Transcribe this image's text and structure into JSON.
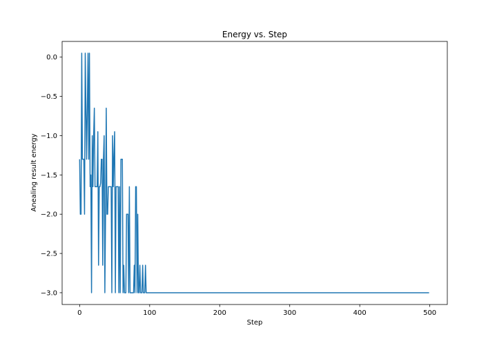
{
  "chart_data": {
    "type": "line",
    "title": "Energy vs. Step",
    "xlabel": "Step",
    "ylabel": "Anealing result energy",
    "xlim": [
      -25,
      525
    ],
    "ylim": [
      -3.15,
      0.2
    ],
    "xticks": [
      0,
      100,
      200,
      300,
      400,
      500
    ],
    "yticks": [
      0.0,
      -0.5,
      -1.0,
      -1.5,
      -2.0,
      -2.5,
      -3.0
    ],
    "xtick_labels": [
      "0",
      "100",
      "200",
      "300",
      "400",
      "500"
    ],
    "ytick_labels": [
      "0.0",
      "−0.5",
      "−1.0",
      "−1.5",
      "−2.0",
      "−2.5",
      "−3.0"
    ],
    "grid": false,
    "series": [
      {
        "color": "#1f77b4",
        "x": [
          0,
          1,
          2,
          3,
          4,
          5,
          6,
          7,
          8,
          9,
          10,
          11,
          12,
          13,
          14,
          15,
          16,
          17,
          18,
          19,
          20,
          21,
          22,
          23,
          24,
          25,
          26,
          27,
          28,
          29,
          30,
          31,
          32,
          33,
          34,
          35,
          36,
          37,
          38,
          39,
          40,
          41,
          42,
          43,
          44,
          45,
          46,
          47,
          48,
          49,
          50,
          51,
          52,
          53,
          54,
          55,
          56,
          57,
          58,
          59,
          60,
          61,
          62,
          63,
          64,
          65,
          66,
          67,
          68,
          69,
          70,
          71,
          72,
          73,
          74,
          75,
          76,
          77,
          78,
          79,
          80,
          81,
          82,
          83,
          84,
          85,
          86,
          87,
          88,
          89,
          90,
          91,
          92,
          93,
          94,
          95,
          96,
          97,
          98,
          99,
          100,
          499
        ],
        "y": [
          -1.3,
          -2.0,
          -2.0,
          0.05,
          -1.3,
          -1.3,
          -1.3,
          -2.0,
          0.05,
          -0.65,
          -1.3,
          -0.65,
          0.05,
          -1.3,
          0.05,
          -1.65,
          -1.5,
          -3.0,
          -1.0,
          -1.65,
          -1.0,
          -0.65,
          -1.65,
          -1.65,
          -1.65,
          -1.65,
          -0.95,
          -2.65,
          -1.65,
          -1.65,
          -1.6,
          -1.3,
          -1.3,
          -2.65,
          -1.3,
          -1.0,
          -3.0,
          -2.0,
          -0.65,
          -2.0,
          -2.0,
          -1.65,
          -1.65,
          -1.65,
          -1.65,
          -1.65,
          -3.0,
          -1.0,
          -1.65,
          -1.25,
          -0.95,
          -3.0,
          -1.65,
          -1.65,
          -1.65,
          -1.65,
          -3.0,
          -1.65,
          -3.0,
          -1.3,
          -1.3,
          -1.3,
          -3.0,
          -2.65,
          -3.0,
          -3.0,
          -3.0,
          -2.0,
          -2.0,
          -2.0,
          -3.0,
          -1.65,
          -3.0,
          -3.0,
          -3.0,
          -3.0,
          -3.0,
          -3.0,
          -2.65,
          -3.0,
          -1.65,
          -1.65,
          -3.0,
          -2.0,
          -3.0,
          -3.0,
          -2.65,
          -3.0,
          -3.0,
          -3.0,
          -2.65,
          -3.0,
          -3.0,
          -3.0,
          -2.65,
          -3.0,
          -3.0,
          -3.0,
          -3.0,
          -3.0,
          -3.0,
          -3.0
        ]
      }
    ]
  }
}
